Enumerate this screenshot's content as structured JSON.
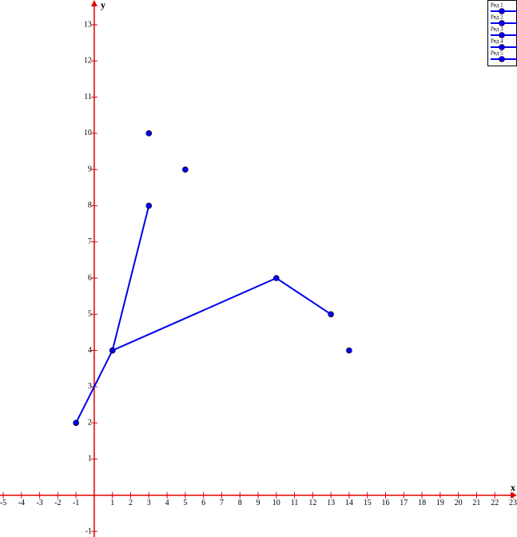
{
  "chart_data": {
    "type": "line",
    "x_label": "x",
    "y_label": "y",
    "xlim": [
      -5,
      23
    ],
    "ylim": [
      -1,
      13
    ],
    "xticks": [
      -5,
      -4,
      -3,
      -2,
      -1,
      1,
      2,
      3,
      4,
      5,
      6,
      7,
      8,
      9,
      10,
      11,
      12,
      13,
      14,
      15,
      16,
      17,
      18,
      19,
      20,
      21,
      22,
      23
    ],
    "yticks": [
      -1,
      1,
      2,
      3,
      4,
      5,
      6,
      7,
      8,
      9,
      10,
      11,
      12,
      13
    ],
    "legend": "top-right",
    "series": [
      {
        "name": "Ряд 1",
        "color": "#0000ee",
        "x": [
          -1,
          1,
          3
        ],
        "values": [
          2,
          4,
          8
        ]
      },
      {
        "name": "Ряд 2",
        "color": "#0000ee",
        "x": [
          1,
          10,
          13
        ],
        "values": [
          4,
          6,
          5
        ]
      },
      {
        "name": "Ряд 3",
        "color": "#0000ee",
        "x": [
          3
        ],
        "values": [
          10
        ]
      },
      {
        "name": "Ряд 4",
        "color": "#0000ee",
        "x": [
          5
        ],
        "values": [
          9
        ]
      },
      {
        "name": "Ряд 5",
        "color": "#0000ee",
        "x": [
          14
        ],
        "values": [
          4
        ]
      }
    ]
  }
}
